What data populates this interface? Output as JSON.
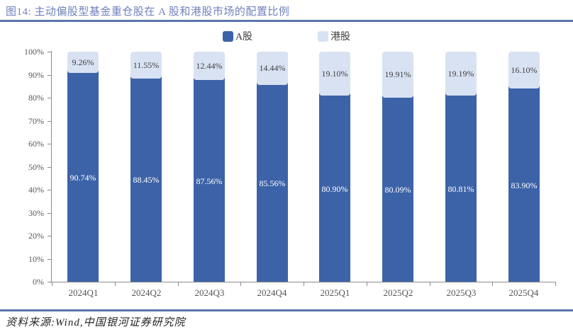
{
  "header": {
    "title": "图14: 主动偏股型基金重仓股在 A 股和港股市场的配置比例"
  },
  "chart_data": {
    "type": "bar",
    "stacked": true,
    "percent_stacked": true,
    "title": "主动偏股型基金重仓股在 A 股和港股市场的配置比例",
    "categories": [
      "2024Q1",
      "2024Q2",
      "2024Q3",
      "2024Q4",
      "2025Q1",
      "2025Q2",
      "2025Q3",
      "2025Q4"
    ],
    "series": [
      {
        "name": "A股",
        "color": "#3C63A8",
        "label_color": "#FFFFFF",
        "values": [
          90.74,
          88.45,
          87.56,
          85.56,
          80.9,
          80.09,
          80.81,
          83.9
        ],
        "labels": [
          "90.74%",
          "88.45%",
          "87.56%",
          "85.56%",
          "80.90%",
          "80.09%",
          "80.81%",
          "83.90%"
        ]
      },
      {
        "name": "港股",
        "color": "#D9E2F3",
        "label_color": "#404040",
        "values": [
          9.26,
          11.55,
          12.44,
          14.44,
          19.1,
          19.91,
          19.19,
          16.1
        ],
        "labels": [
          "9.26%",
          "11.55%",
          "12.44%",
          "14.44%",
          "19.10%",
          "19.91%",
          "19.19%",
          "16.10%"
        ]
      }
    ],
    "ylim": [
      0,
      100
    ],
    "ytick_step": 10,
    "ytick_labels": [
      "0%",
      "10%",
      "20%",
      "30%",
      "40%",
      "50%",
      "60%",
      "70%",
      "80%",
      "90%",
      "100%"
    ],
    "grid": false,
    "legend_position": "top-center",
    "axis_color": "#8C8C8C"
  },
  "footer": {
    "source_note": "资料来源:Wind,中国银河证券研究院"
  }
}
